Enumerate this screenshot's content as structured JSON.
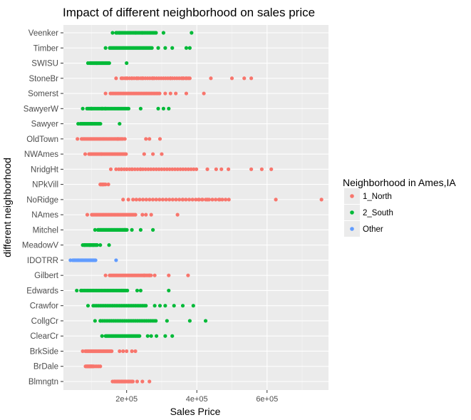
{
  "chart_data": {
    "type": "scatter",
    "title": "Impact of different neighborhood on sales price",
    "xlabel": "Sales Price",
    "ylabel": "different neighborhood",
    "xlim": [
      20000,
      775000
    ],
    "xticks": [
      {
        "value": 200000,
        "label": "2e+05"
      },
      {
        "value": 400000,
        "label": "4e+05"
      },
      {
        "value": 600000,
        "label": "6e+05"
      }
    ],
    "grid": true,
    "legend": {
      "title": "Neighborhood in Ames,IA",
      "placement": "right",
      "entries": [
        {
          "name": "1_North",
          "color": "#F8766D"
        },
        {
          "name": "2_South",
          "color": "#00BA38"
        },
        {
          "name": "Other",
          "color": "#619CFF"
        }
      ]
    },
    "categories": [
      "Blmngtn",
      "BrDale",
      "BrkSide",
      "ClearCr",
      "CollgCr",
      "Crawfor",
      "Edwards",
      "Gilbert",
      "IDOTRR",
      "MeadowV",
      "Mitchel",
      "NAmes",
      "NoRidge",
      "NPkVill",
      "NridgHt",
      "NWAmes",
      "OldTown",
      "Sawyer",
      "SawyerW",
      "Somerst",
      "StoneBr",
      "SWISU",
      "Timber",
      "Veenker"
    ],
    "series": [
      {
        "category": "Blmngtn",
        "group": "1_North",
        "min": 160000,
        "max": 265000,
        "points": [
          160000,
          165000,
          170000,
          175000,
          180000,
          185000,
          190000,
          195000,
          205000,
          215000,
          230000,
          245000,
          265000
        ]
      },
      {
        "category": "BrDale",
        "group": "1_North",
        "min": 83000,
        "max": 125000,
        "points": [
          83000,
          88000,
          93000,
          97000,
          100000,
          105000,
          110000,
          115000,
          120000,
          125000
        ]
      },
      {
        "category": "BrkSide",
        "group": "1_North",
        "min": 75000,
        "max": 225000,
        "points": [
          75000,
          85000,
          180000,
          190000,
          200000,
          215000,
          225000
        ]
      },
      {
        "category": "ClearCr",
        "group": "2_South",
        "min": 130000,
        "max": 330000,
        "points": [
          130000,
          140000,
          260000,
          270000,
          285000,
          310000,
          330000
        ]
      },
      {
        "category": "CollgCr",
        "group": "2_South",
        "min": 110000,
        "max": 425000,
        "points": [
          110000,
          125000,
          315000,
          380000,
          425000
        ]
      },
      {
        "category": "Crawfor",
        "group": "2_South",
        "min": 90000,
        "max": 390000,
        "points": [
          90000,
          115000,
          135000,
          280000,
          295000,
          310000,
          335000,
          360000,
          390000
        ]
      },
      {
        "category": "Edwards",
        "group": "2_South",
        "min": 58000,
        "max": 320000,
        "points": [
          58000,
          70000,
          185000,
          190000,
          230000,
          240000,
          320000
        ]
      },
      {
        "category": "Gilbert",
        "group": "1_North",
        "min": 140000,
        "max": 375000,
        "points": [
          140000,
          250000,
          265000,
          280000,
          320000,
          375000
        ]
      },
      {
        "category": "IDOTRR",
        "group": "Other",
        "min": 40000,
        "max": 170000,
        "points": [
          40000,
          62000,
          170000
        ]
      },
      {
        "category": "MeadowV",
        "group": "2_South",
        "min": 75000,
        "max": 150000,
        "points": [
          75000,
          80000,
          95000,
          105000,
          125000,
          150000
        ]
      },
      {
        "category": "Mitchel",
        "group": "2_South",
        "min": 110000,
        "max": 275000,
        "points": [
          110000,
          195000,
          215000,
          240000,
          275000
        ]
      },
      {
        "category": "NAmes",
        "group": "1_North",
        "min": 88000,
        "max": 345000,
        "points": [
          88000,
          245000,
          255000,
          270000,
          345000
        ]
      },
      {
        "category": "NoRidge",
        "group": "1_North",
        "min": 190000,
        "max": 755000,
        "points": [
          190000,
          205000,
          360000,
          405000,
          415000,
          430000,
          465000,
          625000,
          755000
        ]
      },
      {
        "category": "NPkVill",
        "group": "1_North",
        "min": 125000,
        "max": 148000,
        "points": [
          125000,
          132000,
          140000,
          148000
        ]
      },
      {
        "category": "NridgHt",
        "group": "1_North",
        "min": 155000,
        "max": 612000,
        "points": [
          155000,
          170000,
          185000,
          200000,
          215000,
          240000,
          430000,
          455000,
          470000,
          490000,
          555000,
          585000,
          612000
        ]
      },
      {
        "category": "NWAmes",
        "group": "1_North",
        "min": 82000,
        "max": 300000,
        "points": [
          82000,
          128000,
          250000,
          275000,
          300000
        ]
      },
      {
        "category": "OldTown",
        "group": "1_North",
        "min": 60000,
        "max": 295000,
        "points": [
          60000,
          175000,
          195000,
          255000,
          265000,
          295000
        ]
      },
      {
        "category": "Sawyer",
        "group": "2_South",
        "min": 62000,
        "max": 180000,
        "points": [
          62000,
          100000,
          180000
        ]
      },
      {
        "category": "SawyerW",
        "group": "2_South",
        "min": 75000,
        "max": 320000,
        "points": [
          75000,
          100000,
          130000,
          140000,
          240000,
          290000,
          305000,
          320000
        ]
      },
      {
        "category": "Somerst",
        "group": "1_North",
        "min": 140000,
        "max": 420000,
        "points": [
          140000,
          310000,
          325000,
          340000,
          370000,
          420000
        ]
      },
      {
        "category": "StoneBr",
        "group": "1_North",
        "min": 170000,
        "max": 555000,
        "points": [
          170000,
          185000,
          200000,
          215000,
          230000,
          245000,
          275000,
          325000,
          360000,
          370000,
          380000,
          440000,
          500000,
          535000,
          555000
        ]
      },
      {
        "category": "SWISU",
        "group": "2_South",
        "min": 90000,
        "max": 200000,
        "points": [
          90000,
          115000,
          200000
        ]
      },
      {
        "category": "Timber",
        "group": "2_South",
        "min": 140000,
        "max": 380000,
        "points": [
          140000,
          290000,
          310000,
          330000,
          370000,
          380000
        ]
      },
      {
        "category": "Veenker",
        "group": "2_South",
        "min": 160000,
        "max": 385000,
        "points": [
          160000,
          170000,
          180000,
          190000,
          205000,
          225000,
          245000,
          265000,
          305000,
          385000
        ]
      }
    ]
  }
}
